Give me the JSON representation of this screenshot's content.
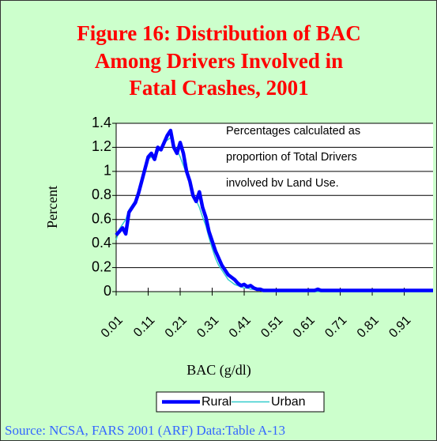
{
  "chart_data": {
    "type": "line",
    "title": [
      "Figure 16: Distribution of BAC",
      "Among Drivers Involved in",
      "Fatal Crashes, 2001"
    ],
    "annotation": [
      "Percentages calculated as",
      "proportion of Total Drivers",
      "involved bv Land Use."
    ],
    "xlabel": "BAC (g/dl)",
    "ylabel": "Percent",
    "source": "Source: NCSA, FARS 2001 (ARF) Data:Table A-13",
    "categories": [
      "0.01",
      null,
      null,
      null,
      null,
      null,
      null,
      null,
      null,
      null,
      "0.11",
      null,
      null,
      null,
      null,
      null,
      null,
      null,
      null,
      null,
      "0.21",
      null,
      null,
      null,
      null,
      null,
      null,
      null,
      null,
      null,
      "0.31",
      null,
      null,
      null,
      null,
      null,
      null,
      null,
      null,
      null,
      "0.41",
      null,
      null,
      null,
      null,
      null,
      null,
      null,
      null,
      null,
      "0.51",
      null,
      null,
      null,
      null,
      null,
      null,
      null,
      null,
      null,
      "0.61",
      null,
      null,
      null,
      null,
      null,
      null,
      null,
      null,
      null,
      "0.71",
      null,
      null,
      null,
      null,
      null,
      null,
      null,
      null,
      null,
      "0.81",
      null,
      null,
      null,
      null,
      null,
      null,
      null,
      null,
      null,
      "0.91",
      null,
      null,
      null,
      null,
      null,
      null,
      null,
      null,
      null
    ],
    "series": [
      {
        "name": "Rural",
        "color": "#0000ff",
        "width": 4.5,
        "values": [
          0.47,
          0.5,
          0.53,
          0.48,
          0.66,
          0.7,
          0.74,
          0.82,
          0.92,
          1.02,
          1.12,
          1.15,
          1.1,
          1.2,
          1.18,
          1.24,
          1.3,
          1.34,
          1.2,
          1.15,
          1.24,
          1.15,
          1.0,
          0.92,
          0.8,
          0.75,
          0.83,
          0.7,
          0.62,
          0.5,
          0.42,
          0.34,
          0.28,
          0.22,
          0.18,
          0.14,
          0.12,
          0.1,
          0.07,
          0.05,
          0.06,
          0.04,
          0.05,
          0.03,
          0.02,
          0.02,
          0.01,
          0.01,
          0.01,
          0.01,
          0.01,
          0.01,
          0.01,
          0.01,
          0.01,
          0.01,
          0.01,
          0.01,
          0.01,
          0.01,
          0.01,
          0.01,
          0.01,
          0.02,
          0.01,
          0.01,
          0.01,
          0.01,
          0.01,
          0.01,
          0.01,
          0.01,
          0.01,
          0.01,
          0.01,
          0.01,
          0.01,
          0.01,
          0.01,
          0.01,
          0.01,
          0.01,
          0.01,
          0.01,
          0.01,
          0.01,
          0.01,
          0.01,
          0.01,
          0.01,
          0.01,
          0.01,
          0.01,
          0.01,
          0.01,
          0.01,
          0.01,
          0.01,
          0.01,
          0.01
        ]
      },
      {
        "name": "Urban",
        "color": "#33cccc",
        "width": 1.5,
        "values": [
          0.43,
          0.52,
          0.56,
          0.6,
          0.68,
          0.72,
          0.76,
          0.84,
          0.95,
          1.05,
          1.1,
          1.12,
          1.14,
          1.16,
          1.2,
          1.24,
          1.26,
          1.28,
          1.22,
          1.18,
          1.12,
          1.05,
          0.98,
          0.9,
          0.82,
          0.76,
          0.7,
          0.62,
          0.55,
          0.45,
          0.36,
          0.28,
          0.22,
          0.18,
          0.14,
          0.1,
          0.08,
          0.06,
          0.05,
          0.04,
          0.03,
          0.03,
          0.02,
          0.02,
          0.02,
          0.01,
          0.01,
          0.01,
          0.01,
          0.01,
          0,
          0,
          0,
          0,
          0,
          0,
          0,
          0,
          0,
          0,
          0,
          0,
          0,
          0,
          0,
          0,
          0,
          0,
          0,
          0,
          0,
          0,
          0,
          0,
          0,
          0,
          0,
          0,
          0,
          0,
          0,
          0,
          0,
          0,
          0,
          0,
          0,
          0,
          0,
          0,
          0,
          0,
          0,
          0,
          0,
          0,
          0,
          0,
          0,
          0
        ]
      }
    ],
    "ylim": [
      0,
      1.4
    ],
    "yticks": [
      0,
      0.2,
      0.4,
      0.6,
      0.8,
      1,
      1.2,
      1.4
    ],
    "grid": true
  }
}
